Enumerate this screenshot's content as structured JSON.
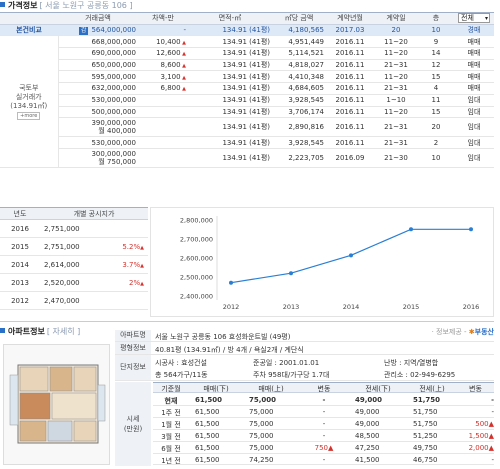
{
  "price_section": {
    "title": "가격정보",
    "subtitle": "[ 서울 노원구 공릉동 106 ]",
    "headers": [
      "거래금액",
      "차액-만",
      "면적-㎡",
      "㎡당 금액",
      "계약년월",
      "계약일",
      "층"
    ],
    "filter_selected": "전체",
    "compare_label": "본건비교",
    "side_label": "국토부\n실거래가",
    "side_sub": "(134.91㎡)",
    "more_label": "+more",
    "rows": [
      {
        "tag": "감",
        "amount": "564,000,000",
        "diff": "-",
        "area": "134.91 (41평)",
        "per_m2": "4,180,565",
        "ym": "2017.03",
        "day": "20",
        "floor": "10",
        "type": "경매",
        "diff_up": false
      },
      {
        "amount": "668,000,000",
        "diff": "10,400",
        "area": "134.91 (41평)",
        "per_m2": "4,951,449",
        "ym": "2016.11",
        "day": "11~20",
        "floor": "9",
        "type": "매매",
        "diff_up": true
      },
      {
        "amount": "690,000,000",
        "diff": "12,600",
        "area": "134.91 (41평)",
        "per_m2": "5,114,521",
        "ym": "2016.11",
        "day": "11~20",
        "floor": "14",
        "type": "매매",
        "diff_up": true
      },
      {
        "amount": "650,000,000",
        "diff": "8,600",
        "area": "134.91 (41평)",
        "per_m2": "4,818,027",
        "ym": "2016.11",
        "day": "21~31",
        "floor": "12",
        "type": "매매",
        "diff_up": true
      },
      {
        "amount": "595,000,000",
        "diff": "3,100",
        "area": "134.91 (41평)",
        "per_m2": "4,410,348",
        "ym": "2016.11",
        "day": "11~20",
        "floor": "15",
        "type": "매매",
        "diff_up": true
      },
      {
        "amount": "632,000,000",
        "diff": "6,800",
        "area": "134.91 (41평)",
        "per_m2": "4,684,605",
        "ym": "2016.11",
        "day": "21~31",
        "floor": "4",
        "type": "매매",
        "diff_up": true
      },
      {
        "amount": "530,000,000",
        "diff": "",
        "area": "134.91 (41평)",
        "per_m2": "3,928,545",
        "ym": "2016.11",
        "day": "1~10",
        "floor": "11",
        "type": "임대",
        "diff_up": false
      },
      {
        "amount": "500,000,000",
        "diff": "",
        "area": "134.91 (41평)",
        "per_m2": "3,706,174",
        "ym": "2016.11",
        "day": "11~20",
        "floor": "15",
        "type": "임대",
        "diff_up": false
      },
      {
        "amount": "390,000,000",
        "amount2": "월 400,000",
        "diff": "",
        "area": "134.91 (41평)",
        "per_m2": "2,890,816",
        "ym": "2016.11",
        "day": "21~31",
        "floor": "20",
        "type": "임대",
        "diff_up": false
      },
      {
        "amount": "530,000,000",
        "diff": "",
        "area": "134.91 (41평)",
        "per_m2": "3,928,545",
        "ym": "2016.11",
        "day": "21~31",
        "floor": "2",
        "type": "임대",
        "diff_up": false
      },
      {
        "amount": "300,000,000",
        "amount2": "월 750,000",
        "diff": "",
        "area": "134.91 (41평)",
        "per_m2": "2,223,705",
        "ym": "2016.09",
        "day": "21~30",
        "floor": "10",
        "type": "임대",
        "diff_up": false
      }
    ]
  },
  "annual": {
    "headers": [
      "년도",
      "개별 공시지가"
    ],
    "rows": [
      {
        "year": "2016",
        "value": "2,751,000",
        "pct": ""
      },
      {
        "year": "2015",
        "value": "2,751,000",
        "pct": "5.2%"
      },
      {
        "year": "2014",
        "value": "2,614,000",
        "pct": "3.7%"
      },
      {
        "year": "2013",
        "value": "2,520,000",
        "pct": "2%"
      },
      {
        "year": "2012",
        "value": "2,470,000",
        "pct": ""
      }
    ]
  },
  "chart_data": {
    "type": "line",
    "x": [
      "2012",
      "2013",
      "2014",
      "2015",
      "2016"
    ],
    "series": [
      {
        "values": [
          2470000,
          2520000,
          2614000,
          2751000,
          2751000
        ]
      }
    ],
    "y_ticks": [
      "2,800,000",
      "2,700,000",
      "2,600,000",
      "2,500,000",
      "2,400,000"
    ],
    "ylim": [
      2400000,
      2800000
    ],
    "grid": false,
    "color": "#2a7fd4"
  },
  "apt_section": {
    "title": "아파트정보",
    "subtitle": "[ 자세히 ]",
    "provider": "· 정보제공 -",
    "provider_brand": "부동산",
    "name_label": "아파트명",
    "name_value": "서울 노원구 공릉동 106 효성화운트빌 (49평)",
    "type_label": "평형정보",
    "type_value": "40.81평 (134.91㎡) / 방 4개 / 욕실2개 / 계단식",
    "complex_label": "단지정보",
    "builder": "시공사 : 효성건설",
    "completed": "준공일 : 2001.01.01",
    "heating": "난방 : 지역/열병합",
    "households": "총 564가구/11동",
    "parking": "주차 958대/가구당 1.7대",
    "office": "관리소 : 02-949-6295",
    "market_label": "시세\n(만원)",
    "market_headers": [
      "기준월",
      "매매(下)",
      "매매(上)",
      "변동",
      "전세(下)",
      "전세(上)",
      "변동"
    ],
    "market_rows": [
      {
        "m": "현재",
        "s_lo": "61,500",
        "s_hi": "75,000",
        "s_chg": "-",
        "j_lo": "49,000",
        "j_hi": "51,750",
        "j_chg": "-"
      },
      {
        "m": "1주 전",
        "s_lo": "61,500",
        "s_hi": "75,000",
        "s_chg": "-",
        "j_lo": "49,000",
        "j_hi": "51,750",
        "j_chg": "-"
      },
      {
        "m": "1월 전",
        "s_lo": "61,500",
        "s_hi": "75,000",
        "s_chg": "-",
        "j_lo": "49,000",
        "j_hi": "51,750",
        "j_chg": "500▲"
      },
      {
        "m": "3월 전",
        "s_lo": "61,500",
        "s_hi": "75,000",
        "s_chg": "-",
        "j_lo": "48,500",
        "j_hi": "51,250",
        "j_chg": "1,500▲"
      },
      {
        "m": "6월 전",
        "s_lo": "61,500",
        "s_hi": "75,000",
        "s_chg": "750▲",
        "j_lo": "47,250",
        "j_hi": "49,750",
        "j_chg": "2,000▲"
      },
      {
        "m": "1년 전",
        "s_lo": "61,500",
        "s_hi": "74,250",
        "s_chg": "-",
        "j_lo": "41,500",
        "j_hi": "46,750",
        "j_chg": "-"
      }
    ]
  }
}
